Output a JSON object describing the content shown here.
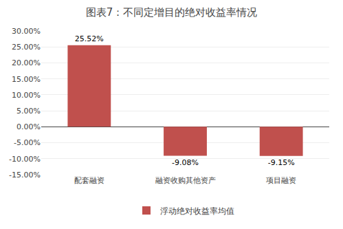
{
  "chart_data": {
    "type": "bar",
    "title": "图表7：不同定增目的绝对收益率情况",
    "categories": [
      "配套融资",
      "融资收购其他资产",
      "项目融资"
    ],
    "series": [
      {
        "name": "浮动绝对收益率均值",
        "color": "#c0504d",
        "values": [
          0.2552,
          -0.0908,
          -0.0915
        ],
        "value_labels": [
          "25.52%",
          "-9.08%",
          "-9.15%"
        ]
      }
    ],
    "ylim": [
      -0.15,
      0.3
    ],
    "yticks": [
      {
        "value": -0.15,
        "label": "-15.00%"
      },
      {
        "value": -0.1,
        "label": "-10.00%"
      },
      {
        "value": -0.05,
        "label": "-5.00%"
      },
      {
        "value": 0.0,
        "label": "0.00%"
      },
      {
        "value": 0.05,
        "label": "5.00%"
      },
      {
        "value": 0.1,
        "label": "10.00%"
      },
      {
        "value": 0.15,
        "label": "15.00%"
      },
      {
        "value": 0.2,
        "label": "20.00%"
      },
      {
        "value": 0.25,
        "label": "25.00%"
      },
      {
        "value": 0.3,
        "label": "30.00%"
      }
    ],
    "grid": true,
    "legend": "bottom",
    "data_labels": true
  }
}
